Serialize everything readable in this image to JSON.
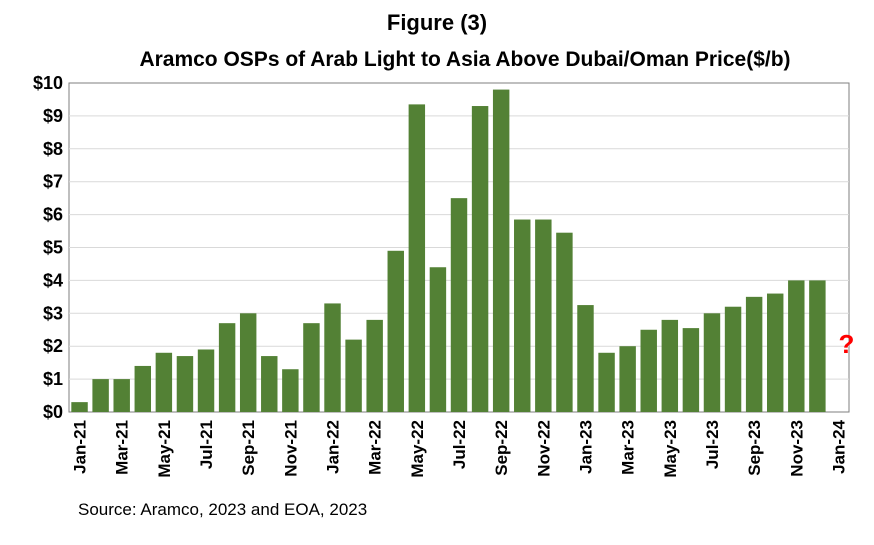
{
  "chart_data": {
    "type": "bar",
    "title": "Figure (3)",
    "subtitle": "Aramco OSPs of Arab Light to Asia Above Dubai/Oman Price($/b)",
    "source": "Source: Aramco, 2023 and EOA, 2023",
    "categories": [
      "Jan-21",
      "Feb-21",
      "Mar-21",
      "Apr-21",
      "May-21",
      "Jun-21",
      "Jul-21",
      "Aug-21",
      "Sep-21",
      "Oct-21",
      "Nov-21",
      "Dec-21",
      "Jan-22",
      "Feb-22",
      "Mar-22",
      "Apr-22",
      "May-22",
      "Jun-22",
      "Jul-22",
      "Aug-22",
      "Sep-22",
      "Oct-22",
      "Nov-22",
      "Dec-22",
      "Jan-23",
      "Feb-23",
      "Mar-23",
      "Apr-23",
      "May-23",
      "Jun-23",
      "Jul-23",
      "Aug-23",
      "Sep-23",
      "Oct-23",
      "Nov-23",
      "Dec-23",
      "Jan-24"
    ],
    "tick_labels": [
      "Jan-21",
      "Mar-21",
      "May-21",
      "Jul-21",
      "Sep-21",
      "Nov-21",
      "Jan-22",
      "Mar-22",
      "May-22",
      "Jul-22",
      "Sep-22",
      "Nov-22",
      "Jan-23",
      "Mar-23",
      "May-23",
      "Jul-23",
      "Sep-23",
      "Nov-23",
      "Jan-24"
    ],
    "values": [
      0.3,
      1.0,
      1.0,
      1.4,
      1.8,
      1.7,
      1.9,
      2.7,
      3.0,
      1.7,
      1.3,
      2.7,
      3.3,
      2.2,
      2.8,
      4.9,
      9.35,
      4.4,
      6.5,
      9.3,
      9.8,
      5.85,
      5.85,
      5.45,
      3.25,
      1.8,
      2.0,
      2.5,
      2.8,
      2.55,
      3.0,
      3.2,
      3.5,
      3.6,
      4.0,
      4.0,
      null
    ],
    "pending_marker": "?",
    "y_ticks": [
      "$0",
      "$1",
      "$2",
      "$3",
      "$4",
      "$5",
      "$6",
      "$7",
      "$8",
      "$9",
      "$10"
    ],
    "ylim": [
      0,
      10
    ],
    "bar_color": "#538135",
    "marker_color": "#ff0000",
    "grid": true
  }
}
